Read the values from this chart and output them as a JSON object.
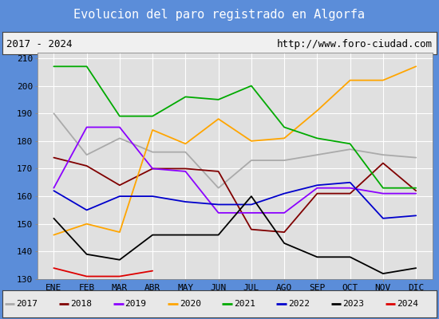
{
  "title": "Evolucion del paro registrado en Algorfa",
  "subtitle_left": "2017 - 2024",
  "subtitle_right": "http://www.foro-ciudad.com",
  "ylim": [
    130,
    212
  ],
  "yticks": [
    130,
    140,
    150,
    160,
    170,
    180,
    190,
    200,
    210
  ],
  "months": [
    "ENE",
    "FEB",
    "MAR",
    "ABR",
    "MAY",
    "JUN",
    "JUL",
    "AGO",
    "SEP",
    "OCT",
    "NOV",
    "DIC"
  ],
  "series": {
    "2017": {
      "color": "#aaaaaa",
      "values": [
        190,
        175,
        181,
        176,
        176,
        163,
        173,
        173,
        175,
        177,
        175,
        174
      ]
    },
    "2018": {
      "color": "#800000",
      "values": [
        174,
        171,
        164,
        170,
        170,
        169,
        148,
        147,
        161,
        161,
        172,
        162
      ]
    },
    "2019": {
      "color": "#8b00ff",
      "values": [
        163,
        185,
        185,
        170,
        169,
        154,
        154,
        154,
        163,
        163,
        161,
        161
      ]
    },
    "2020": {
      "color": "#ffa500",
      "values": [
        146,
        150,
        147,
        184,
        179,
        188,
        180,
        181,
        191,
        202,
        202,
        207
      ]
    },
    "2021": {
      "color": "#00aa00",
      "values": [
        207,
        207,
        189,
        189,
        196,
        195,
        200,
        185,
        181,
        179,
        163,
        163
      ]
    },
    "2022": {
      "color": "#0000cc",
      "values": [
        162,
        155,
        160,
        160,
        158,
        157,
        157,
        161,
        164,
        165,
        152,
        153
      ]
    },
    "2023": {
      "color": "#000000",
      "values": [
        152,
        139,
        137,
        146,
        146,
        146,
        160,
        143,
        138,
        138,
        132,
        134
      ]
    },
    "2024": {
      "color": "#dd0000",
      "values": [
        134,
        131,
        131,
        133,
        null,
        null,
        null,
        null,
        null,
        null,
        null,
        null
      ]
    }
  },
  "title_bg_color": "#5b8dd9",
  "title_color": "#ffffff",
  "outer_bg_color": "#5b8dd9",
  "inner_bg_color": "#f0f0f0",
  "plot_bg_color": "#e0e0e0",
  "grid_color": "#ffffff",
  "subtitle_bg": "#f0f0f0",
  "legend_bg": "#e8e8e8",
  "title_fontsize": 11,
  "tick_fontsize": 8,
  "legend_fontsize": 8
}
